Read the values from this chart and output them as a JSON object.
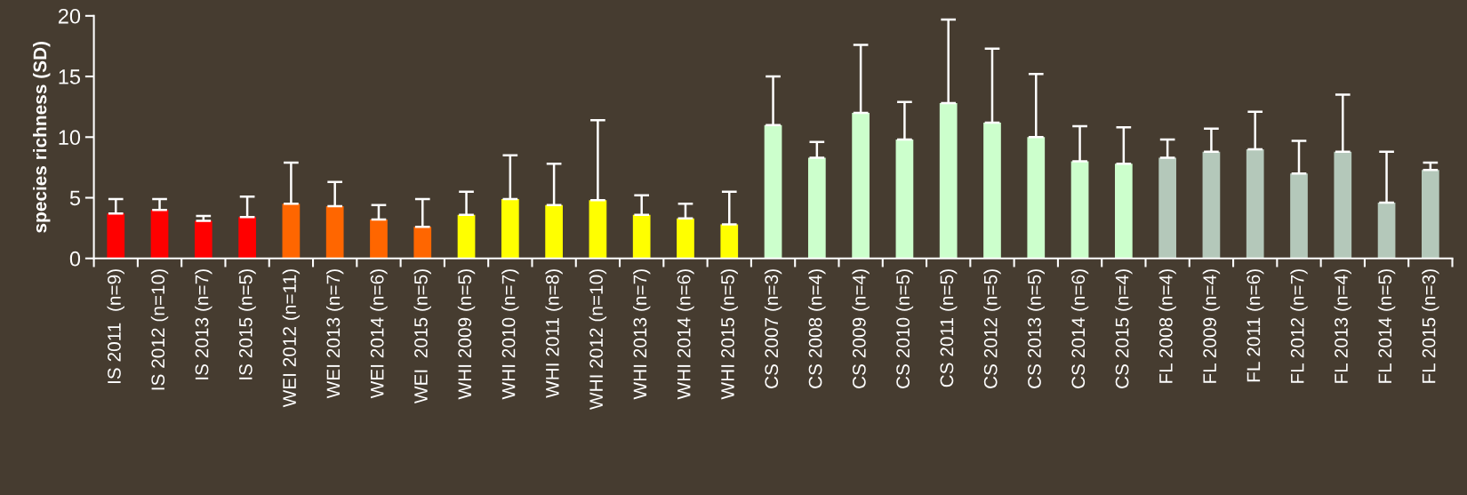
{
  "chart_data": {
    "type": "bar",
    "ylabel": "species richness (SD)",
    "categories": [
      "IS 2011  (n=9)",
      "IS 2012 (n=10)",
      "IS 2013 (n=7)",
      "IS 2015 (n=5)",
      "WEI 2012 (n=11)",
      "WEI 2013 (n=7)",
      "WEI 2014 (n=6)",
      "WEI  2015 (n=5)",
      "WHI 2009 (n=5)",
      "WHI 2010 (n=7)",
      "WHI 2011 (n=8)",
      "WHI 2012 (n=10)",
      "WHI 2013 (n=7)",
      "WHI 2014 (n=6)",
      "WHI 2015 (n=5)",
      "CS 2007 (n=3)",
      "CS 2008 (n=4)",
      "CS 2009 (n=4)",
      "CS 2010 (n=5)",
      "CS 2011 (n=5)",
      "CS 2012 (n=5)",
      "CS 2013 (n=5)",
      "CS 2014 (n=6)",
      "CS 2015 (n=4)",
      "FL 2008 (n=4)",
      "FL 2009 (n=4)",
      "FL 2011 (n=6)",
      "FL 2012 (n=7)",
      "FL 2013 (n=4)",
      "FL 2014 (n=5)",
      "FL 2015 (n=3)"
    ],
    "values": [
      3.7,
      4.0,
      3.1,
      3.4,
      4.5,
      4.3,
      3.2,
      2.6,
      3.6,
      4.9,
      4.4,
      4.8,
      3.6,
      3.3,
      2.8,
      11.0,
      8.3,
      12.0,
      9.8,
      12.8,
      11.2,
      10.0,
      8.0,
      7.8,
      8.3,
      8.8,
      9.0,
      7.0,
      8.8,
      4.6,
      7.3
    ],
    "errors": [
      [
        3.7,
        4.9
      ],
      [
        4.0,
        4.9
      ],
      [
        3.1,
        3.5
      ],
      [
        3.4,
        5.1
      ],
      [
        4.5,
        7.9
      ],
      [
        4.3,
        6.3
      ],
      [
        3.2,
        4.4
      ],
      [
        2.6,
        4.9
      ],
      [
        3.6,
        5.5
      ],
      [
        4.9,
        8.5
      ],
      [
        4.4,
        7.8
      ],
      [
        4.8,
        11.4
      ],
      [
        3.6,
        5.2
      ],
      [
        3.3,
        4.5
      ],
      [
        2.8,
        5.5
      ],
      [
        11.0,
        15.0
      ],
      [
        8.3,
        9.6
      ],
      [
        12.0,
        17.6
      ],
      [
        9.8,
        12.9
      ],
      [
        12.8,
        19.7
      ],
      [
        11.2,
        17.3
      ],
      [
        10.0,
        15.2
      ],
      [
        8.0,
        10.9
      ],
      [
        7.8,
        10.8
      ],
      [
        8.3,
        9.8
      ],
      [
        8.8,
        10.7
      ],
      [
        9.0,
        12.1
      ],
      [
        7.0,
        9.7
      ],
      [
        8.8,
        13.5
      ],
      [
        4.6,
        8.8
      ],
      [
        7.3,
        7.9
      ]
    ],
    "colors": [
      "#ff0000",
      "#ff0000",
      "#ff0000",
      "#ff0000",
      "#ff6600",
      "#ff6600",
      "#ff6600",
      "#ff6600",
      "#ffff00",
      "#ffff00",
      "#ffff00",
      "#ffff00",
      "#ffff00",
      "#ffff00",
      "#ffff00",
      "#ccffcc",
      "#ccffcc",
      "#ccffcc",
      "#ccffcc",
      "#ccffcc",
      "#ccffcc",
      "#ccffcc",
      "#ccffcc",
      "#ccffcc",
      "#b4c8ba",
      "#b4c8ba",
      "#b4c8ba",
      "#b4c8ba",
      "#b4c8ba",
      "#b4c8ba",
      "#b4c8ba"
    ],
    "ylim": [
      0,
      20
    ],
    "yticks": [
      0,
      5,
      10,
      15,
      20
    ],
    "grid": false,
    "legend": false
  }
}
